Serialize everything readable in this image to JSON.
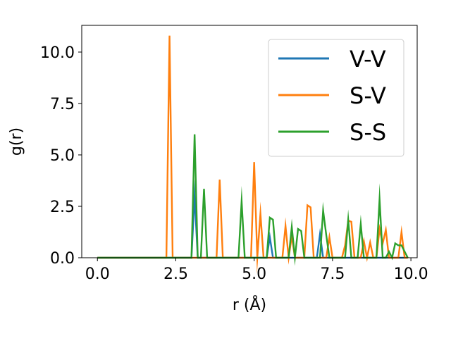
{
  "chart_data": {
    "type": "line",
    "xlabel": "r (Å)",
    "ylabel": "g(r)",
    "xlim": [
      -0.5,
      10.2
    ],
    "ylim": [
      0,
      11.3
    ],
    "xticks": [
      0.0,
      2.5,
      5.0,
      7.5,
      10.0
    ],
    "xtick_labels": [
      "0.0",
      "2.5",
      "5.0",
      "7.5",
      "10.0"
    ],
    "yticks": [
      0.0,
      2.5,
      5.0,
      7.5,
      10.0
    ],
    "ytick_labels": [
      "0.0",
      "2.5",
      "5.0",
      "7.5",
      "10.0"
    ],
    "grid": false,
    "legend_position": "upper right",
    "x": [
      0.0,
      0.1,
      0.2,
      0.3,
      0.4,
      0.5,
      0.6,
      0.7,
      0.8,
      0.9,
      1.0,
      1.1,
      1.2,
      1.3,
      1.4,
      1.5,
      1.6,
      1.7,
      1.8,
      1.9,
      2.0,
      2.1,
      2.2,
      2.3,
      2.4,
      2.5,
      2.6,
      2.7,
      2.8,
      2.9,
      3.0,
      3.1,
      3.2,
      3.3,
      3.4,
      3.5,
      3.6,
      3.7,
      3.8,
      3.9,
      4.0,
      4.1,
      4.2,
      4.3,
      4.4,
      4.5,
      4.6,
      4.7,
      4.8,
      4.9,
      5.0,
      5.1,
      5.2,
      5.3,
      5.4,
      5.5,
      5.6,
      5.7,
      5.8,
      5.9,
      6.0,
      6.1,
      6.2,
      6.3,
      6.4,
      6.5,
      6.6,
      6.7,
      6.8,
      6.9,
      7.0,
      7.1,
      7.2,
      7.3,
      7.4,
      7.5,
      7.6,
      7.7,
      7.8,
      7.9,
      8.0,
      8.1,
      8.2,
      8.3,
      8.4,
      8.5,
      8.6,
      8.7,
      8.8,
      8.9,
      9.0,
      9.1,
      9.2,
      9.3,
      9.4,
      9.5,
      9.6,
      9.7,
      9.8,
      9.9
    ],
    "series": [
      {
        "name": "V-V",
        "color": "#1f77b4",
        "values": [
          0,
          0,
          0,
          0,
          0,
          0,
          0,
          0,
          0,
          0,
          0,
          0,
          0,
          0,
          0,
          0,
          0,
          0,
          0,
          0,
          0,
          0,
          0,
          0,
          0,
          0,
          0,
          0,
          0,
          0,
          0,
          3.0,
          0,
          0,
          0,
          0,
          0,
          0,
          0,
          0,
          0,
          0,
          0,
          0,
          0,
          0,
          0,
          0,
          0,
          0,
          0,
          0,
          0,
          0,
          0,
          1.0,
          0,
          0,
          0,
          0,
          0,
          0,
          0,
          0,
          0,
          0,
          0,
          0,
          0,
          0,
          0,
          1.15,
          0,
          0,
          0,
          0,
          0,
          0,
          0,
          0,
          0,
          0,
          0,
          0,
          0,
          0,
          0,
          0,
          0,
          0,
          0,
          0,
          0,
          0,
          0,
          0,
          0,
          0,
          0,
          0
        ]
      },
      {
        "name": "S-V",
        "color": "#ff7f0e",
        "values": [
          0,
          0,
          0,
          0,
          0,
          0,
          0,
          0,
          0,
          0,
          0,
          0,
          0,
          0,
          0,
          0,
          0,
          0,
          0,
          0,
          0,
          0,
          0,
          10.8,
          0,
          0,
          0,
          0,
          0,
          0,
          0,
          0,
          0,
          0,
          0,
          0,
          0,
          0,
          0,
          3.8,
          0,
          0,
          0,
          0,
          0,
          0,
          0,
          0,
          0,
          0,
          4.65,
          0,
          2.15,
          0,
          0,
          0,
          0,
          0,
          0,
          0,
          1.55,
          0,
          1.05,
          0,
          0,
          0,
          0,
          2.55,
          2.45,
          0,
          0,
          0,
          0,
          0,
          1.0,
          0,
          0,
          0,
          0,
          0.6,
          1.8,
          1.75,
          0,
          0,
          0,
          0.8,
          0,
          0.75,
          0,
          0,
          1.4,
          0.7,
          1.35,
          0,
          0,
          0,
          0,
          1.25,
          0,
          0
        ]
      },
      {
        "name": "S-S",
        "color": "#2ca02c",
        "values": [
          0,
          0,
          0,
          0,
          0,
          0,
          0,
          0,
          0,
          0,
          0,
          0,
          0,
          0,
          0,
          0,
          0,
          0,
          0,
          0,
          0,
          0,
          0,
          0,
          0,
          0,
          0,
          0,
          0,
          0,
          0,
          6.0,
          0,
          0,
          3.35,
          0,
          0,
          0,
          0,
          0,
          0,
          0,
          0,
          0,
          0,
          0,
          2.75,
          0,
          0,
          0,
          0,
          0,
          0,
          0,
          0,
          1.95,
          1.85,
          0,
          0,
          0,
          0,
          0,
          1.5,
          0,
          1.4,
          1.3,
          0,
          0,
          0,
          0,
          0,
          0,
          2.3,
          1.1,
          0,
          0,
          0,
          0,
          0,
          0,
          1.85,
          0,
          0,
          0,
          1.65,
          0,
          0,
          0,
          0,
          0,
          2.85,
          0,
          0,
          0.3,
          0,
          0.7,
          0.6,
          0.6,
          0.3,
          0
        ]
      }
    ]
  }
}
